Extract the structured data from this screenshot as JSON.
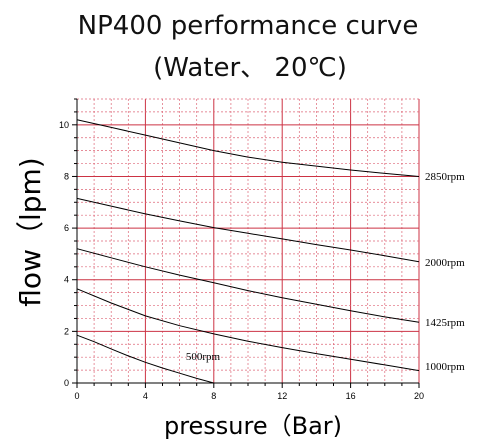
{
  "chart_data": {
    "type": "line",
    "title": "NP400 performance curve",
    "subtitle": "(Water、 20℃)",
    "xlabel": "pressure（Bar)",
    "ylabel": "flow（lpm)",
    "xlim": [
      0,
      20
    ],
    "ylim": [
      0,
      11
    ],
    "xticks": [
      0,
      4,
      8,
      12,
      16,
      20
    ],
    "yticks": [
      0,
      2,
      4,
      6,
      8,
      10
    ],
    "grid": true,
    "colors": {
      "major_grid": "#cc3344",
      "minor_grid": "#dd6677",
      "curve": "#000000"
    },
    "series": [
      {
        "name": "2850rpm",
        "x": [
          0,
          2,
          4,
          6,
          8,
          10,
          12,
          14,
          16,
          18,
          20
        ],
        "y": [
          10.2,
          9.9,
          9.6,
          9.3,
          9.0,
          8.75,
          8.55,
          8.4,
          8.25,
          8.12,
          8.0
        ]
      },
      {
        "name": "2000rpm",
        "x": [
          0,
          2,
          4,
          6,
          8,
          10,
          12,
          14,
          16,
          18,
          20
        ],
        "y": [
          7.15,
          6.85,
          6.55,
          6.28,
          6.02,
          5.8,
          5.58,
          5.36,
          5.15,
          4.93,
          4.7
        ]
      },
      {
        "name": "1425rpm",
        "x": [
          0,
          2,
          4,
          6,
          8,
          10,
          12,
          14,
          16,
          18,
          20
        ],
        "y": [
          5.2,
          4.85,
          4.5,
          4.18,
          3.88,
          3.58,
          3.3,
          3.05,
          2.8,
          2.56,
          2.35
        ]
      },
      {
        "name": "1000rpm",
        "x": [
          0,
          2,
          4,
          6,
          8,
          10,
          12,
          14,
          16,
          18,
          20
        ],
        "y": [
          3.65,
          3.1,
          2.6,
          2.22,
          1.9,
          1.62,
          1.37,
          1.14,
          0.92,
          0.7,
          0.48
        ]
      },
      {
        "name": "500rpm",
        "x": [
          0,
          1,
          2,
          3,
          4,
          5,
          6,
          7,
          8
        ],
        "y": [
          1.85,
          1.6,
          1.32,
          1.05,
          0.8,
          0.58,
          0.38,
          0.18,
          0.0
        ]
      }
    ]
  }
}
